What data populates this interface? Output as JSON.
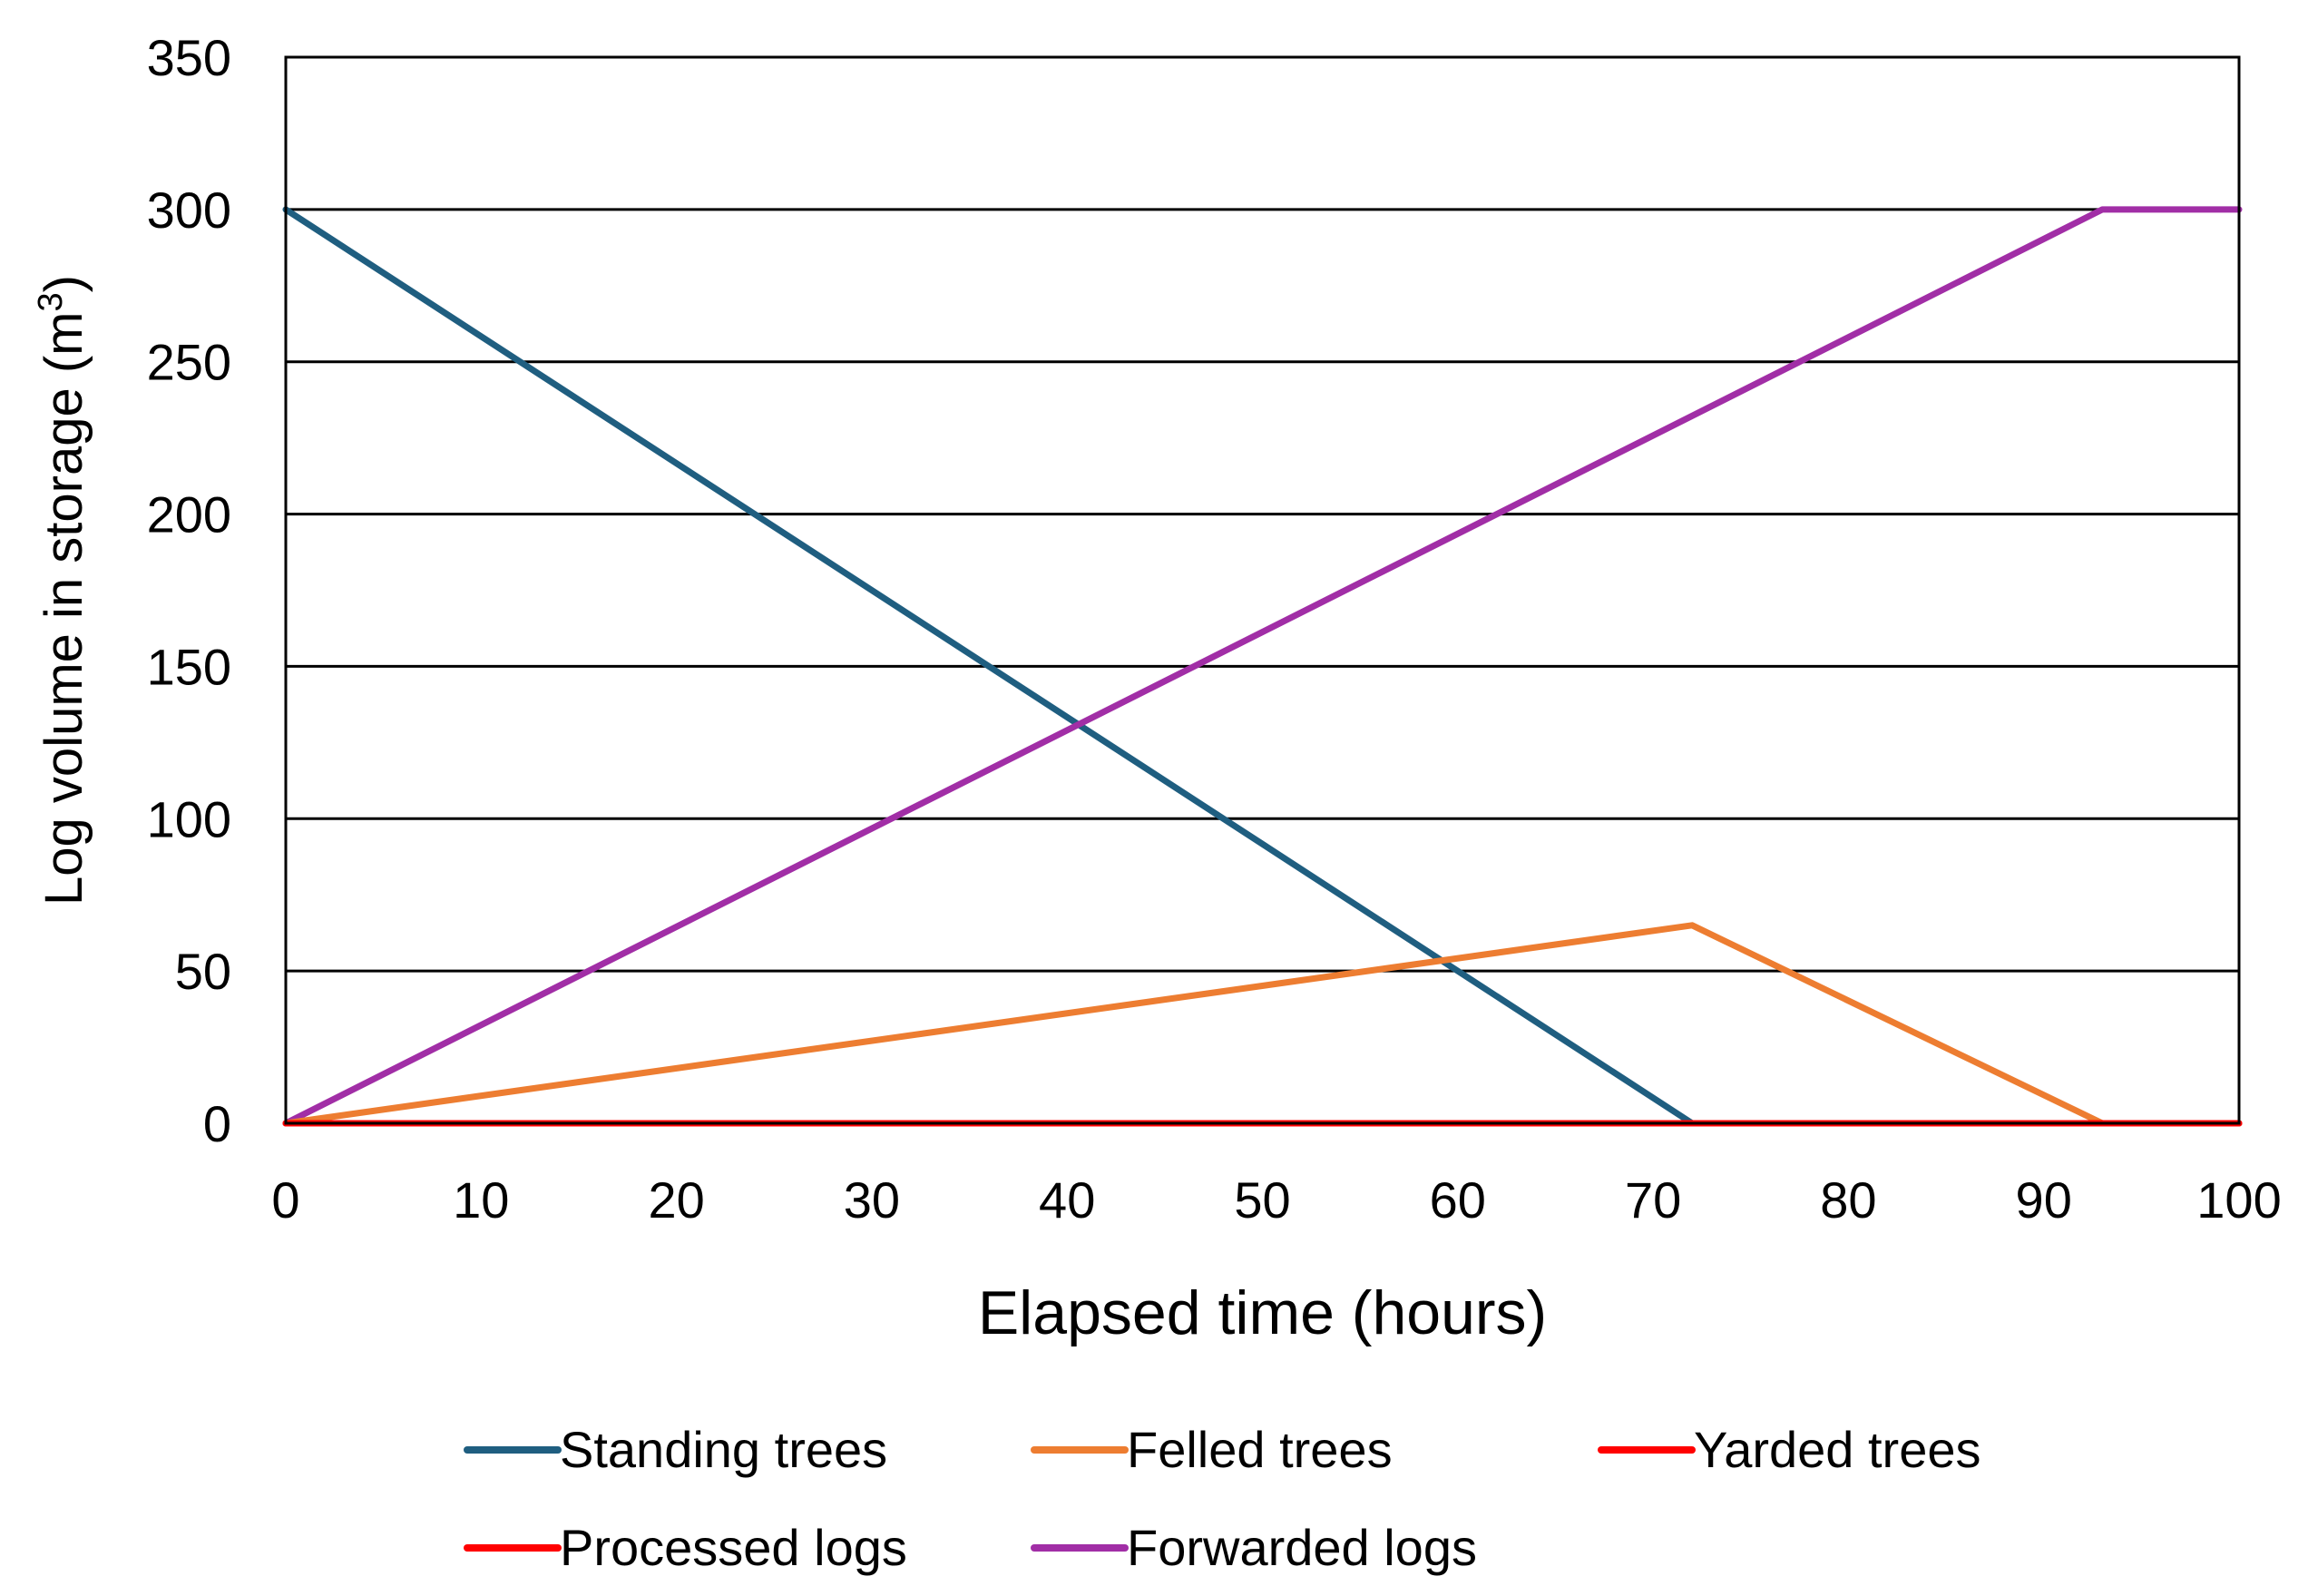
{
  "chart_data": {
    "type": "line",
    "title": "",
    "xlabel": "Elapsed time (hours)",
    "ylabel": "Log volume in storage (m",
    "ylabel_superscript": "3",
    "ylabel_suffix": ")",
    "xlim": [
      0,
      100
    ],
    "ylim": [
      0,
      350
    ],
    "xticks": [
      0,
      10,
      20,
      30,
      40,
      50,
      60,
      70,
      80,
      90,
      100
    ],
    "yticks": [
      0,
      50,
      100,
      150,
      200,
      250,
      300,
      350
    ],
    "grid": "horizontal",
    "legend_position": "bottom",
    "series": [
      {
        "name": "Standing trees",
        "color": "#1f5e80",
        "x": [
          0,
          72
        ],
        "y": [
          300,
          0
        ]
      },
      {
        "name": "Felled trees",
        "color": "#ed7d31",
        "x": [
          0,
          72,
          93,
          100
        ],
        "y": [
          0,
          65,
          0,
          0
        ]
      },
      {
        "name": "Yarded trees",
        "color": "#ff0000",
        "x": [
          0,
          100
        ],
        "y": [
          0,
          0
        ]
      },
      {
        "name": "Processed logs",
        "color": "#ff0000",
        "x": [
          0,
          100
        ],
        "y": [
          0,
          0
        ]
      },
      {
        "name": "Forwarded logs",
        "color": "#a12ea6",
        "x": [
          0,
          93,
          100
        ],
        "y": [
          0,
          300,
          300
        ]
      }
    ]
  }
}
